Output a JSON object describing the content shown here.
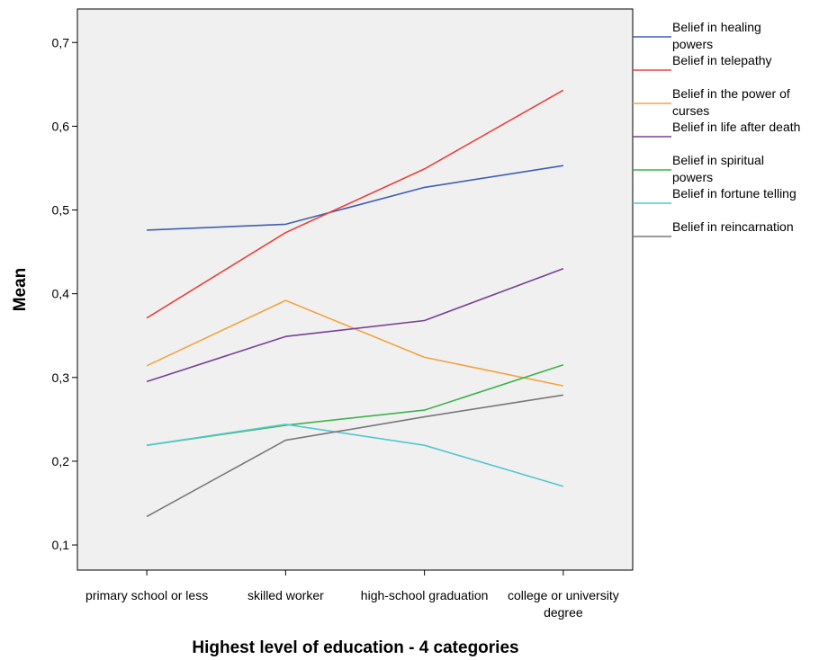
{
  "chart_data": {
    "type": "line",
    "xlabel": "Highest level of education - 4 categories",
    "ylabel": "Mean",
    "categories": [
      [
        "primary school or less"
      ],
      [
        "skilled worker"
      ],
      [
        "high-school graduation"
      ],
      [
        "college or university",
        "degree"
      ]
    ],
    "ylim": [
      0.07,
      0.74
    ],
    "yticks": [
      "0,1",
      "0,2",
      "0,3",
      "0,4",
      "0,5",
      "0,6",
      "0,7"
    ],
    "ytick_values": [
      0.1,
      0.2,
      0.3,
      0.4,
      0.5,
      0.6,
      0.7
    ],
    "grid": false,
    "legend_position": "right",
    "plot_background": "#f0f0f0",
    "series": [
      {
        "name": [
          "Belief in healing",
          "powers"
        ],
        "color": "#3f5fb0",
        "values": [
          0.476,
          0.483,
          0.527,
          0.553
        ]
      },
      {
        "name": [
          "Belief in telepathy"
        ],
        "color": "#e8413c",
        "values": [
          0.371,
          0.473,
          0.549,
          0.643
        ]
      },
      {
        "name": [
          "Belief in the power of",
          "curses"
        ],
        "color": "#f3a340",
        "values": [
          0.314,
          0.392,
          0.324,
          0.29
        ]
      },
      {
        "name": [
          "Belief in life after death"
        ],
        "color": "#7a3f96",
        "values": [
          0.295,
          0.349,
          0.368,
          0.43
        ]
      },
      {
        "name": [
          "Belief in spiritual",
          "powers"
        ],
        "color": "#3db34a",
        "values": [
          0.219,
          0.243,
          0.261,
          0.315
        ]
      },
      {
        "name": [
          "Belief in fortune telling"
        ],
        "color": "#52c6d2",
        "values": [
          0.219,
          0.244,
          0.219,
          0.17
        ]
      },
      {
        "name": [
          "Belief in reincarnation"
        ],
        "color": "#787878",
        "values": [
          0.134,
          0.225,
          0.253,
          0.279
        ]
      }
    ]
  }
}
